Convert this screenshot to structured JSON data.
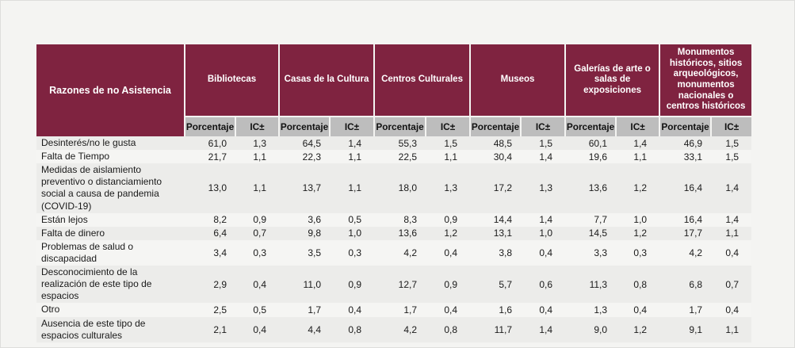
{
  "page": {
    "background": "#f4f4f2",
    "accent_header_color": "#7f2340",
    "subheader_color": "#bdbdbd"
  },
  "table": {
    "corner_header": "Razones de no Asistencia",
    "subheaders": [
      "Porcentaje",
      "IC±"
    ],
    "groups": [
      {
        "label": "Bibliotecas"
      },
      {
        "label": "Casas de la Cultura"
      },
      {
        "label": "Centros Culturales"
      },
      {
        "label": "Museos"
      },
      {
        "label": "Galerías de arte o salas de exposiciones"
      },
      {
        "label": "Monumentos históricos, sitios arqueológicos, monumentos nacionales o centros históricos"
      }
    ],
    "rows": [
      {
        "label": "Desinterés/no le gusta",
        "values": [
          "61,0",
          "1,3",
          "64,5",
          "1,4",
          "55,3",
          "1,5",
          "48,5",
          "1,5",
          "60,1",
          "1,4",
          "46,9",
          "1,5"
        ]
      },
      {
        "label": "Falta de Tiempo",
        "values": [
          "21,7",
          "1,1",
          "22,3",
          "1,1",
          "22,5",
          "1,1",
          "30,4",
          "1,4",
          "19,6",
          "1,1",
          "33,1",
          "1,5"
        ]
      },
      {
        "label": "Medidas de aislamiento preventivo o distanciamiento social a causa de pandemia (COVID-19)",
        "values": [
          "13,0",
          "1,1",
          "13,7",
          "1,1",
          "18,0",
          "1,3",
          "17,2",
          "1,3",
          "13,6",
          "1,2",
          "16,4",
          "1,4"
        ]
      },
      {
        "label": "Están lejos",
        "values": [
          "8,2",
          "0,9",
          "3,6",
          "0,5",
          "8,3",
          "0,9",
          "14,4",
          "1,4",
          "7,7",
          "1,0",
          "16,4",
          "1,4"
        ]
      },
      {
        "label": "Falta de dinero",
        "values": [
          "6,4",
          "0,7",
          "9,8",
          "1,0",
          "13,6",
          "1,2",
          "13,1",
          "1,0",
          "14,5",
          "1,2",
          "17,7",
          "1,1"
        ]
      },
      {
        "label": "Problemas de salud o discapacidad",
        "values": [
          "3,4",
          "0,3",
          "3,5",
          "0,3",
          "4,2",
          "0,4",
          "3,8",
          "0,4",
          "3,3",
          "0,3",
          "4,2",
          "0,4"
        ]
      },
      {
        "label": "Desconocimiento de la realización de este tipo de espacios",
        "values": [
          "2,9",
          "0,4",
          "11,0",
          "0,9",
          "12,7",
          "0,9",
          "5,7",
          "0,6",
          "11,3",
          "0,8",
          "6,8",
          "0,7"
        ]
      },
      {
        "label": "Otro",
        "values": [
          "2,5",
          "0,5",
          "1,7",
          "0,4",
          "1,7",
          "0,4",
          "1,6",
          "0,4",
          "1,3",
          "0,4",
          "1,7",
          "0,4"
        ]
      },
      {
        "label": "Ausencia de este tipo de espacios culturales",
        "values": [
          "2,1",
          "0,4",
          "4,4",
          "0,8",
          "4,2",
          "0,8",
          "11,7",
          "1,4",
          "9,0",
          "1,2",
          "9,1",
          "1,1"
        ]
      }
    ]
  },
  "chart_data": {
    "type": "table",
    "title": "Razones de no Asistencia",
    "row_label_header": "Razones de no Asistencia",
    "sub_columns": [
      "Porcentaje",
      "IC±"
    ],
    "categories": [
      "Desinterés/no le gusta",
      "Falta de Tiempo",
      "Medidas de aislamiento preventivo o distanciamiento social a causa de pandemia (COVID-19)",
      "Están lejos",
      "Falta de dinero",
      "Problemas de salud o discapacidad",
      "Desconocimiento de la realización de este tipo de espacios",
      "Otro",
      "Ausencia de este tipo de espacios culturales"
    ],
    "series": [
      {
        "name": "Bibliotecas",
        "porcentaje": [
          61.0,
          21.7,
          13.0,
          8.2,
          6.4,
          3.4,
          2.9,
          2.5,
          2.1
        ],
        "ic": [
          1.3,
          1.1,
          1.1,
          0.9,
          0.7,
          0.3,
          0.4,
          0.5,
          0.4
        ]
      },
      {
        "name": "Casas de la Cultura",
        "porcentaje": [
          64.5,
          22.3,
          13.7,
          3.6,
          9.8,
          3.5,
          11.0,
          1.7,
          4.4
        ],
        "ic": [
          1.4,
          1.1,
          1.1,
          0.5,
          1.0,
          0.3,
          0.9,
          0.4,
          0.8
        ]
      },
      {
        "name": "Centros Culturales",
        "porcentaje": [
          55.3,
          22.5,
          18.0,
          8.3,
          13.6,
          4.2,
          12.7,
          1.7,
          4.2
        ],
        "ic": [
          1.5,
          1.1,
          1.3,
          0.9,
          1.2,
          0.4,
          0.9,
          0.4,
          0.8
        ]
      },
      {
        "name": "Museos",
        "porcentaje": [
          48.5,
          30.4,
          17.2,
          14.4,
          13.1,
          3.8,
          5.7,
          1.6,
          11.7
        ],
        "ic": [
          1.5,
          1.4,
          1.3,
          1.4,
          1.0,
          0.4,
          0.6,
          0.4,
          1.4
        ]
      },
      {
        "name": "Galerías de arte o salas de exposiciones",
        "porcentaje": [
          60.1,
          19.6,
          13.6,
          7.7,
          14.5,
          3.3,
          11.3,
          1.3,
          9.0
        ],
        "ic": [
          1.4,
          1.1,
          1.2,
          1.0,
          1.2,
          0.3,
          0.8,
          0.4,
          1.2
        ]
      },
      {
        "name": "Monumentos históricos, sitios arqueológicos, monumentos nacionales o centros históricos",
        "porcentaje": [
          46.9,
          33.1,
          16.4,
          16.4,
          17.7,
          4.2,
          6.8,
          1.7,
          9.1
        ],
        "ic": [
          1.5,
          1.5,
          1.4,
          1.4,
          1.1,
          0.4,
          0.7,
          0.4,
          1.1
        ]
      }
    ],
    "layout": {
      "decimal_separator": ",",
      "grid": "subtle-row-stripes",
      "legend_position": "none"
    }
  }
}
